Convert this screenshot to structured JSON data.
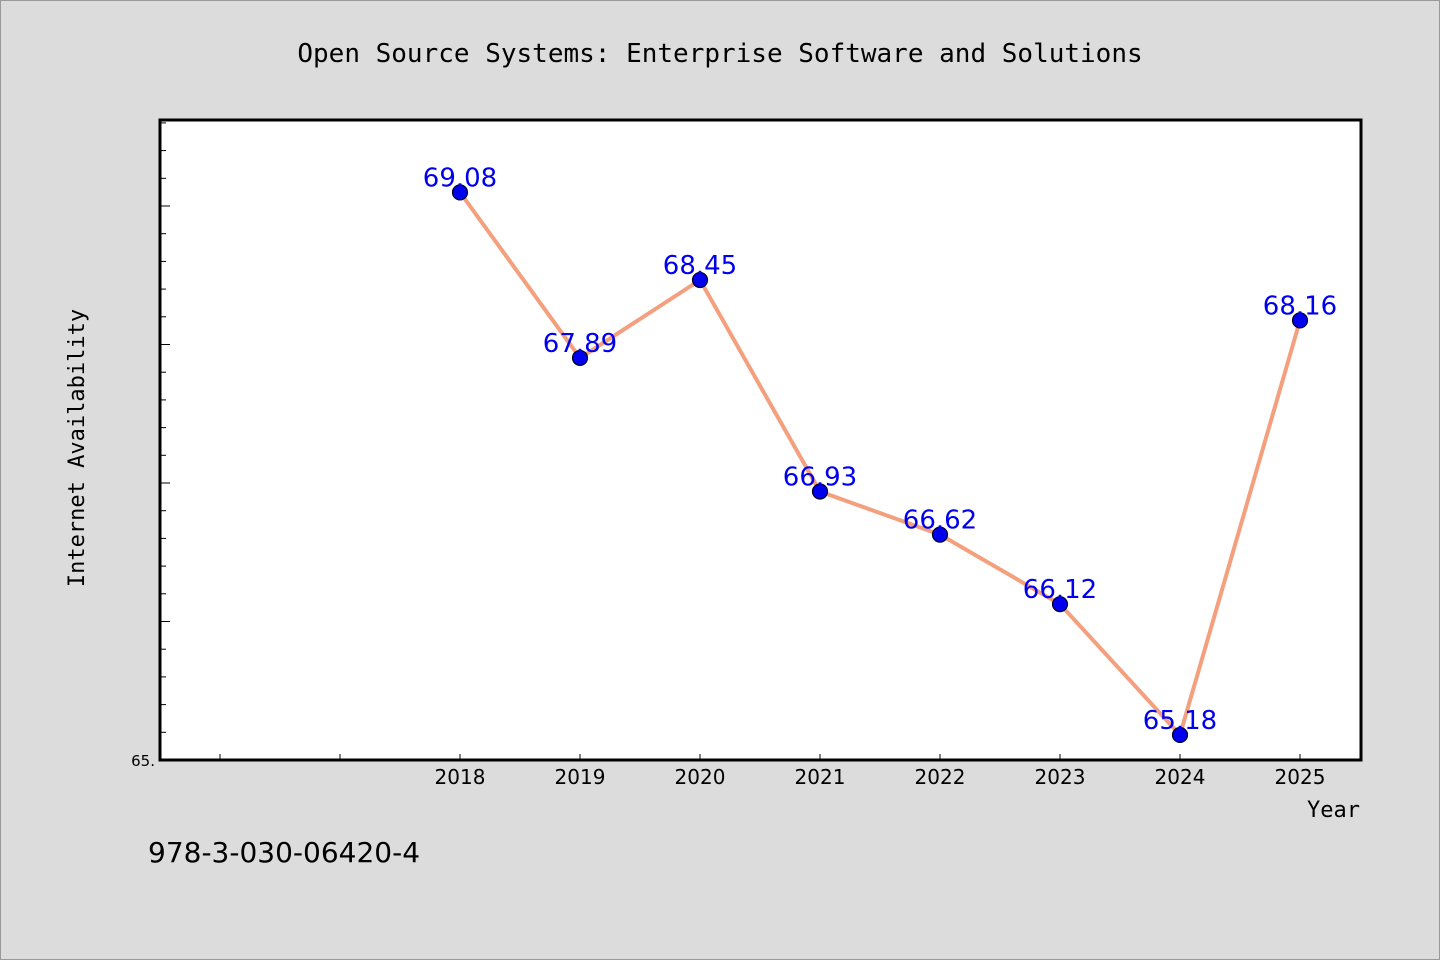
{
  "chart_data": {
    "type": "line",
    "title": "Open Source Systems: Enterprise Software and Solutions",
    "xlabel": "Year",
    "ylabel": "Internet Availability",
    "x": [
      "2018",
      "2019",
      "2020",
      "2021",
      "2022",
      "2023",
      "2024",
      "2025"
    ],
    "series": [
      {
        "values": [
          69.08,
          67.89,
          68.45,
          66.93,
          66.62,
          66.12,
          65.18,
          68.16
        ]
      }
    ],
    "data_labels": [
      "69.08",
      "67.89",
      "68.45",
      "66.93",
      "66.62",
      "66.12",
      "65.18",
      "68.16"
    ],
    "y_tick_labels": [
      "65."
    ],
    "ylim": [
      65.0,
      69.6
    ],
    "grid": false,
    "legend": "none"
  },
  "colors": {
    "background": "#dcdcdc",
    "plot_background": "#ffffff",
    "line": "#f4a07e",
    "marker": "#0000ee",
    "data_label": "#0000ee"
  },
  "footer": {
    "isbn": "978-3-030-06420-4"
  }
}
